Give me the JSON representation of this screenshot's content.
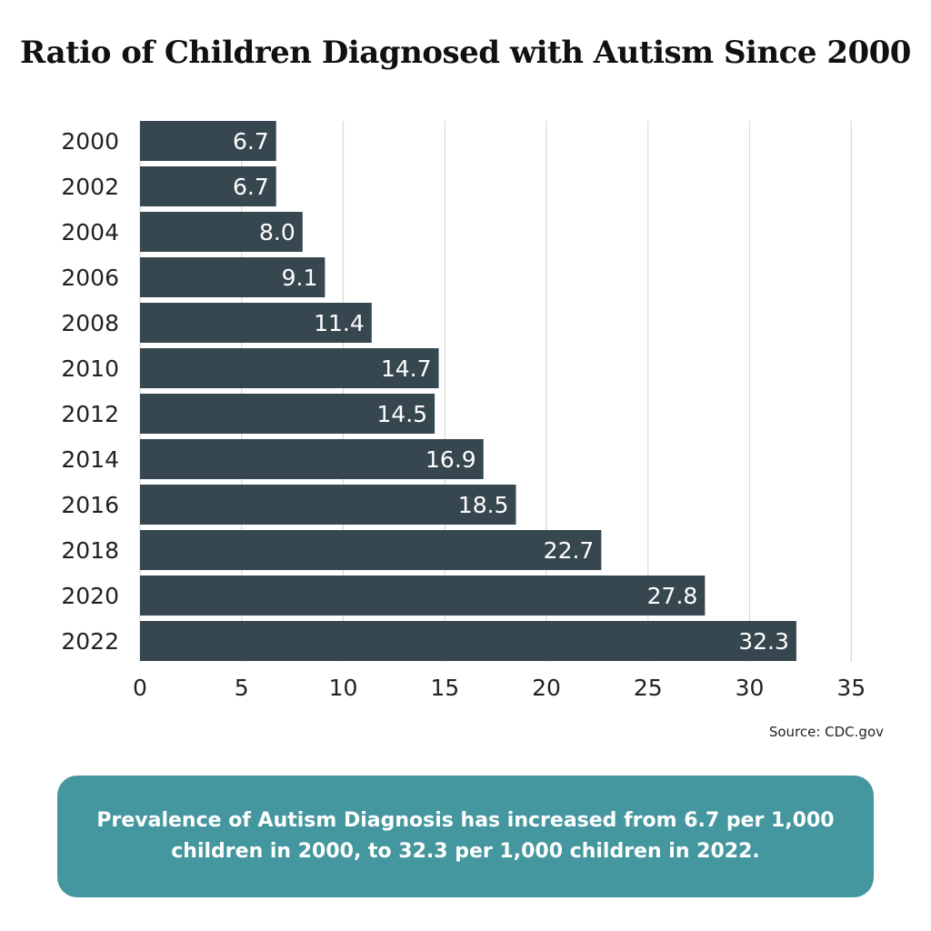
{
  "colors": {
    "bar": "#37474f",
    "grid": "#d9d9d9",
    "callout_bg": "#45979f",
    "bar_label": "#ffffff",
    "tick_text": "#222222"
  },
  "title": "Ratio of Children Diagnosed with Autism Since 2000",
  "source": "Source: CDC.gov",
  "callout": "Prevalence of Autism Diagnosis has increased from 6.7 per 1,000 children in 2000, to 32.3 per 1,000 children in 2022.",
  "chart_data": {
    "type": "bar",
    "orientation": "horizontal",
    "title": "Ratio of Children Diagnosed with Autism Since 2000",
    "xlabel": "",
    "ylabel": "",
    "categories": [
      "2000",
      "2002",
      "2004",
      "2006",
      "2008",
      "2010",
      "2012",
      "2014",
      "2016",
      "2018",
      "2020",
      "2022"
    ],
    "values": [
      6.7,
      6.7,
      8.0,
      9.1,
      11.4,
      14.7,
      14.5,
      16.9,
      18.5,
      22.7,
      27.8,
      32.3
    ],
    "value_labels": [
      "6.7",
      "6.7",
      "8.0",
      "9.1",
      "11.4",
      "14.7",
      "14.5",
      "16.9",
      "18.5",
      "22.7",
      "27.8",
      "32.3"
    ],
    "xlim": [
      0,
      35
    ],
    "xticks": [
      "0",
      "5",
      "10",
      "15",
      "20",
      "25",
      "30",
      "35"
    ],
    "grid": "vertical"
  }
}
